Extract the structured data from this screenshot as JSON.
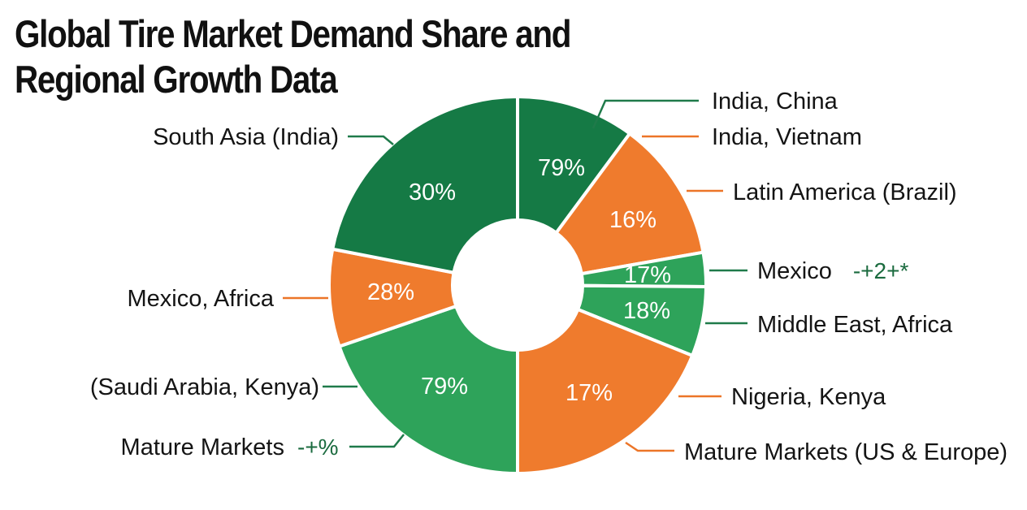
{
  "title": {
    "line1": "Global Tire Market Demand Share and",
    "line2": "Regional Growth Data"
  },
  "colors": {
    "dark_green": "#157a45",
    "green": "#2ea35a",
    "orange": "#ef7b2d",
    "leader_green": "#1f7a4a",
    "leader_orange": "#ec7528"
  },
  "chart_data": {
    "type": "pie",
    "variant": "donut",
    "title": "Global Tire Market Demand Share and Regional Growth Data",
    "segments": [
      {
        "label_pct": "79%",
        "value": 79,
        "color": "dark_green",
        "callout": "India, China"
      },
      {
        "label_pct": "16%",
        "value": 16,
        "color": "orange",
        "callout": "India, Vietnam"
      },
      {
        "label_pct": "17%",
        "value": 17,
        "color": "green",
        "callout": "Mexico",
        "note": "-+2+*"
      },
      {
        "label_pct": "18%",
        "value": 18,
        "color": "green",
        "callout": "Middle East, Africa"
      },
      {
        "label_pct": "17%",
        "value": 17,
        "color": "orange",
        "callout": "Nigeria, Kenya"
      },
      {
        "label_pct": "79%",
        "value": 79,
        "color": "green",
        "callout": "(Saudi Arabia, Kenya)"
      },
      {
        "label_pct": "28%",
        "value": 28,
        "color": "orange",
        "callout": "Mexico, Africa"
      },
      {
        "label_pct": "30%",
        "value": 30,
        "color": "dark_green",
        "callout": "South Asia (India)"
      }
    ],
    "extra_callouts": [
      {
        "text": "Latin America (Brazil)",
        "color": "orange"
      },
      {
        "text": "Mature Markets (US & Europe)",
        "color": "orange"
      },
      {
        "text": "Mature Markets",
        "note": "-+%",
        "color": "green"
      }
    ],
    "legend": "none"
  }
}
